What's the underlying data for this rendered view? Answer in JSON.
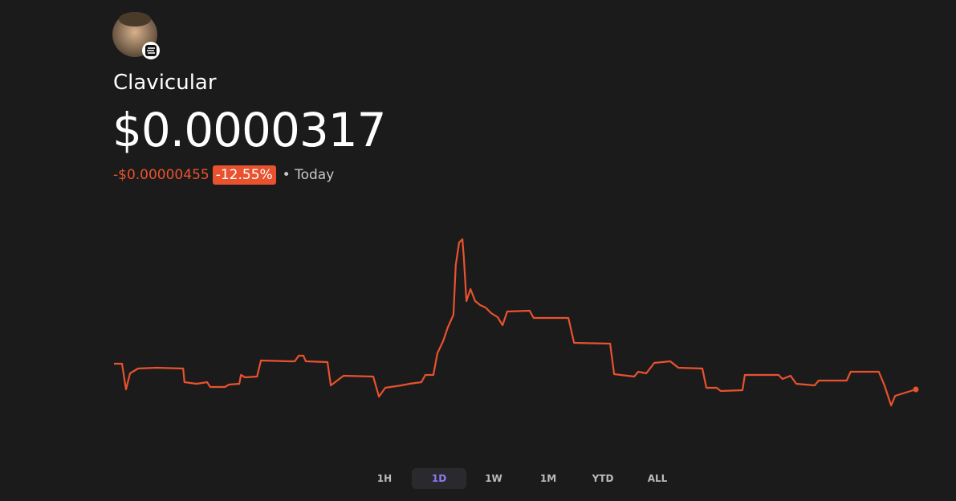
{
  "token": {
    "name": "Clavicular",
    "price": "$0.0000317",
    "change": "-$0.00000455",
    "change_pct": "-12.55%",
    "period": "Today"
  },
  "chart_data": {
    "type": "line",
    "color": "#e8522e",
    "x": [
      0,
      0.24,
      0.36,
      0.48,
      0.72,
      1.27,
      2.07,
      2.11,
      2.47,
      2.79,
      2.88,
      3.32,
      3.44,
      3.75,
      3.8,
      3.92,
      4.28,
      4.4,
      5.24,
      5.41,
      5.53,
      5.67,
      5.74,
      6.39,
      6.49,
      6.87,
      7.76,
      7.93,
      8.12,
      8.6,
      8.84,
      9.2,
      9.32,
      9.56,
      9.68,
      9.85,
      9.99,
      10.16,
      10.23,
      10.33,
      10.43,
      10.47,
      10.55,
      10.67,
      10.81,
      10.96,
      11.12,
      11.29,
      11.48,
      11.63,
      11.77,
      12.44,
      12.56,
      13.6,
      13.77,
      14.85,
      14.97,
      15.57,
      15.69,
      15.93,
      16.17,
      16.65,
      16.89,
      17.61,
      17.73,
      18.04,
      18.16,
      18.81,
      18.88,
      19.89,
      20.01,
      20.25,
      20.42,
      20.97,
      21.09,
      21.93,
      22.05,
      22.89,
      23.06,
      23.26,
      23.38,
      24
    ],
    "values": [
      3.624e-05,
      3.624e-05,
      3.17e-05,
      3.454e-05,
      3.539e-05,
      3.553e-05,
      3.539e-05,
      3.298e-05,
      3.269e-05,
      3.298e-05,
      3.213e-05,
      3.213e-05,
      3.255e-05,
      3.269e-05,
      3.426e-05,
      3.383e-05,
      3.397e-05,
      3.681e-05,
      3.667e-05,
      3.667e-05,
      3.766e-05,
      3.766e-05,
      3.667e-05,
      3.653e-05,
      3.241e-05,
      3.411e-05,
      3.397e-05,
      3.042e-05,
      3.198e-05,
      3.241e-05,
      3.269e-05,
      3.298e-05,
      3.426e-05,
      3.426e-05,
      3.809e-05,
      4.022e-05,
      4.263e-05,
      4.491e-05,
      5.371e-05,
      5.769e-05,
      5.825e-05,
      5.513e-05,
      4.732e-05,
      4.945e-05,
      4.732e-05,
      4.661e-05,
      4.618e-05,
      4.519e-05,
      4.448e-05,
      4.306e-05,
      4.547e-05,
      4.562e-05,
      4.434e-05,
      4.434e-05,
      3.994e-05,
      3.979e-05,
      3.44e-05,
      3.397e-05,
      3.482e-05,
      3.454e-05,
      3.639e-05,
      3.667e-05,
      3.553e-05,
      3.539e-05,
      3.198e-05,
      3.198e-05,
      3.142e-05,
      3.156e-05,
      3.426e-05,
      3.426e-05,
      3.355e-05,
      3.411e-05,
      3.269e-05,
      3.241e-05,
      3.326e-05,
      3.326e-05,
      3.482e-05,
      3.482e-05,
      3.241e-05,
      2.886e-05,
      3.056e-05,
      3.17e-05
    ]
  },
  "ranges": {
    "options": [
      "1H",
      "1D",
      "1W",
      "1M",
      "YTD",
      "ALL"
    ],
    "selected": 1
  }
}
